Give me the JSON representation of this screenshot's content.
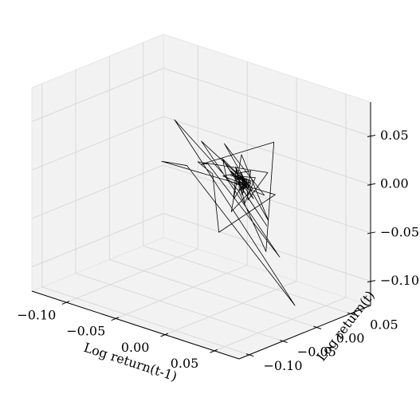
{
  "chart_data": {
    "type": "line",
    "projection": "3d",
    "title": "",
    "xlabel": "Log return(t-1)",
    "ylabel": "Log return(t)",
    "zlabel": "",
    "xlim": [
      -0.135,
      0.075
    ],
    "ylim": [
      -0.115,
      0.08
    ],
    "zlim": [
      -0.125,
      0.085
    ],
    "xticks": [
      -0.1,
      -0.05,
      0.0,
      0.05
    ],
    "xtick_labels": [
      "−0.10",
      "−0.05",
      "0.00",
      "0.05"
    ],
    "yticks": [
      -0.1,
      -0.05,
      0.0,
      0.05
    ],
    "ytick_labels": [
      "−0.10",
      "−0.05",
      "0.00",
      "0.05"
    ],
    "zticks": [
      -0.1,
      -0.05,
      0.0,
      0.05
    ],
    "ztick_labels": [
      "−0.10",
      "−0.05",
      "0.00",
      "0.05"
    ],
    "grid": true,
    "line_color": "#000000",
    "pane_color": "#f2f2f2",
    "series": [
      {
        "points": [
          [
            -0.004,
            0.003,
            0.002
          ],
          [
            0.003,
            0.002,
            -0.004
          ],
          [
            0.002,
            -0.004,
            0.006
          ],
          [
            -0.004,
            0.006,
            -0.003
          ],
          [
            0.006,
            -0.003,
            0.001
          ],
          [
            -0.003,
            0.001,
            0.008
          ],
          [
            0.001,
            0.008,
            -0.006
          ],
          [
            0.008,
            -0.006,
            0.004
          ],
          [
            -0.006,
            0.004,
            -0.012
          ],
          [
            0.004,
            -0.012,
            0.01
          ],
          [
            -0.012,
            0.01,
            -0.002
          ],
          [
            0.01,
            -0.002,
            0.005
          ],
          [
            -0.002,
            0.005,
            -0.009
          ],
          [
            0.005,
            -0.009,
            0.014
          ],
          [
            -0.009,
            0.014,
            -0.018
          ],
          [
            0.014,
            -0.018,
            0.009
          ],
          [
            -0.018,
            0.009,
            0.003
          ],
          [
            0.009,
            0.003,
            -0.015
          ],
          [
            0.003,
            -0.015,
            0.021
          ],
          [
            -0.015,
            0.021,
            -0.024
          ],
          [
            0.021,
            -0.024,
            0.017
          ],
          [
            -0.024,
            0.017,
            -0.006
          ],
          [
            0.017,
            -0.006,
            0.012
          ],
          [
            -0.006,
            0.012,
            -0.027
          ],
          [
            0.012,
            -0.027,
            0.026
          ],
          [
            -0.027,
            0.026,
            -0.034
          ],
          [
            0.026,
            -0.034,
            0.019
          ],
          [
            -0.034,
            0.019,
            0.008
          ],
          [
            0.019,
            0.008,
            -0.041
          ],
          [
            0.008,
            -0.041,
            0.037
          ],
          [
            -0.041,
            0.037,
            -0.022
          ],
          [
            0.037,
            -0.022,
            0.005
          ],
          [
            -0.022,
            0.005,
            0.031
          ],
          [
            0.005,
            0.031,
            -0.047
          ],
          [
            0.031,
            -0.047,
            0.052
          ],
          [
            -0.047,
            0.052,
            -0.061
          ],
          [
            0.052,
            -0.061,
            0.028
          ],
          [
            -0.061,
            0.028,
            0.014
          ],
          [
            0.028,
            0.014,
            -0.072
          ],
          [
            0.014,
            -0.072,
            0.044
          ],
          [
            -0.072,
            0.044,
            -0.018
          ],
          [
            0.044,
            -0.018,
            0.061
          ],
          [
            -0.018,
            0.061,
            -0.095
          ],
          [
            0.061,
            -0.095,
            0.038
          ],
          [
            -0.095,
            0.038,
            0.022
          ],
          [
            0.038,
            0.022,
            -0.121
          ],
          [
            0.022,
            -0.121,
            0.057
          ],
          [
            -0.121,
            0.057,
            -0.035
          ],
          [
            0.057,
            -0.035,
            0.016
          ],
          [
            -0.035,
            0.016,
            -0.068
          ],
          [
            0.016,
            -0.068,
            0.033
          ],
          [
            -0.068,
            0.033,
            -0.011
          ],
          [
            0.033,
            -0.011,
            0.024
          ],
          [
            -0.011,
            0.024,
            -0.029
          ],
          [
            0.024,
            -0.029,
            0.013
          ],
          [
            -0.029,
            0.013,
            -0.007
          ],
          [
            0.013,
            -0.007,
            0.018
          ],
          [
            -0.007,
            0.018,
            -0.014
          ],
          [
            0.018,
            -0.014,
            0.009
          ],
          [
            -0.014,
            0.009,
            -0.003
          ],
          [
            0.009,
            -0.003,
            0.006
          ],
          [
            -0.003,
            0.006,
            -0.01
          ],
          [
            0.006,
            -0.01,
            0.004
          ],
          [
            -0.01,
            0.004,
            0.001
          ],
          [
            0.004,
            0.001,
            -0.005
          ],
          [
            0.001,
            -0.005,
            0.007
          ],
          [
            -0.005,
            0.007,
            -0.002
          ],
          [
            0.007,
            -0.002,
            0.003
          ],
          [
            -0.002,
            0.003,
            -0.001
          ],
          [
            0.003,
            -0.001,
            0.002
          ]
        ]
      }
    ]
  }
}
